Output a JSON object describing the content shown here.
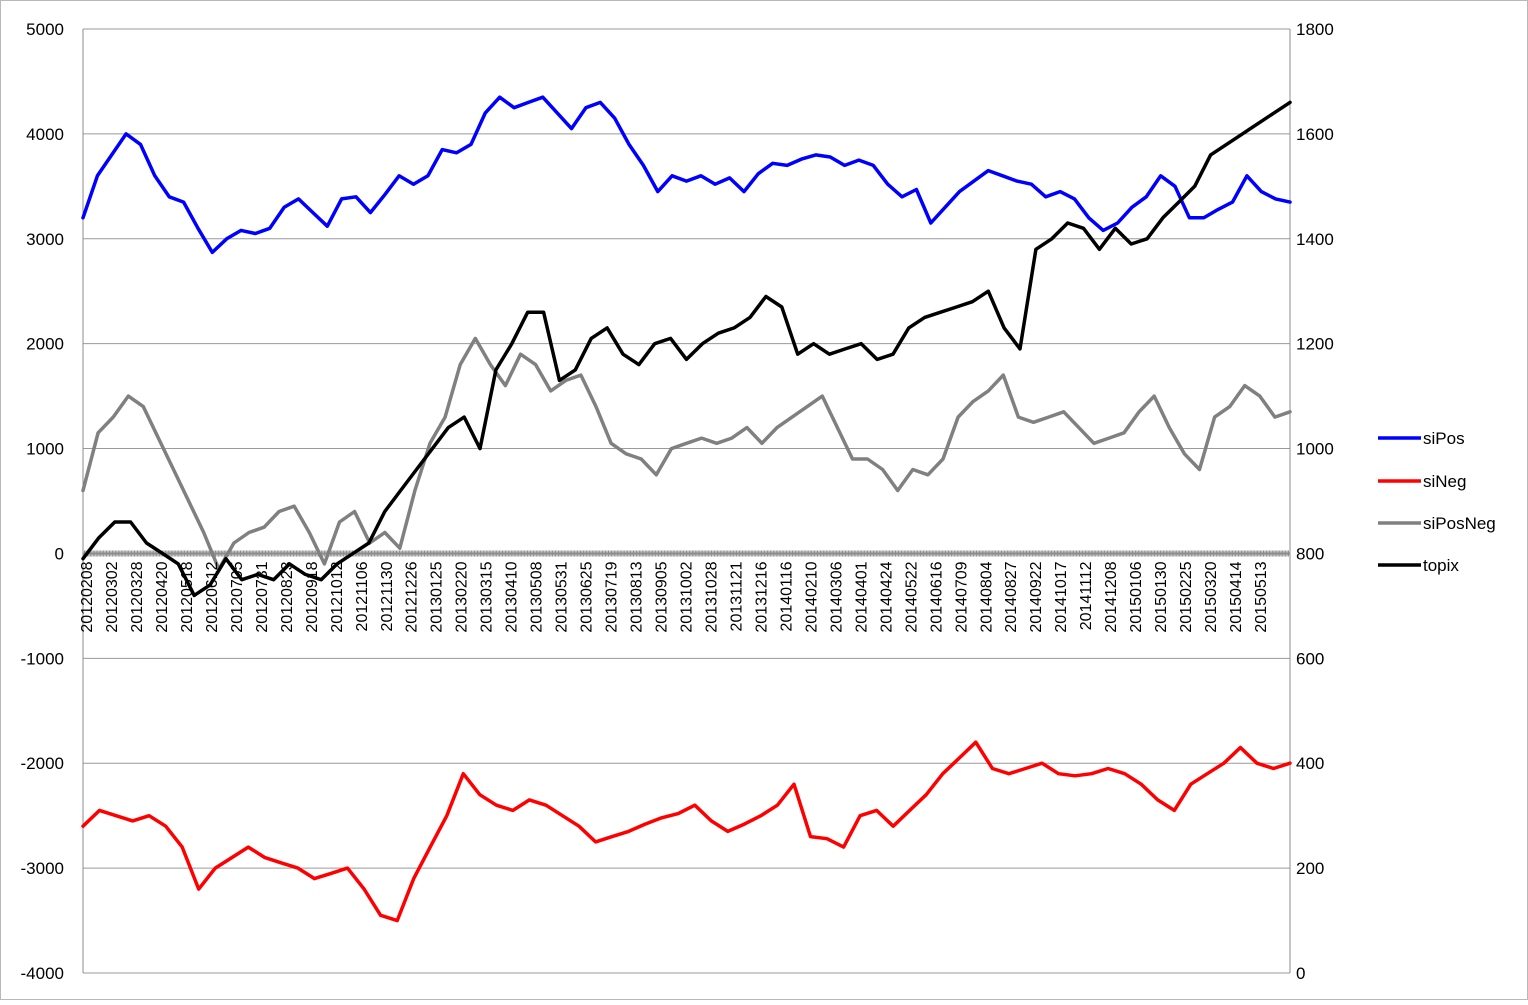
{
  "chart_data": {
    "type": "line",
    "title": "",
    "xlabel": "",
    "ylabel": "",
    "y_left": {
      "min": -4000,
      "max": 5000,
      "step": 1000,
      "ticks": [
        "5000",
        "4000",
        "3000",
        "2000",
        "1000",
        "0",
        "-1000",
        "-2000",
        "-3000",
        "-4000"
      ]
    },
    "y_right": {
      "min": 0,
      "max": 1800,
      "step": 200,
      "ticks": [
        "1800",
        "1600",
        "1400",
        "1200",
        "1000",
        "800",
        "600",
        "400",
        "200",
        "0"
      ]
    },
    "grid": "horizontal",
    "legend_position": "right",
    "x_tick_labels": [
      "20120208",
      "20120302",
      "20120328",
      "20120420",
      "20120518",
      "20120612",
      "20120705",
      "20120731",
      "20120823",
      "20120918",
      "20121012",
      "20121106",
      "20121130",
      "20121226",
      "20130125",
      "20130220",
      "20130315",
      "20130410",
      "20130508",
      "20130531",
      "20130625",
      "20130719",
      "20130813",
      "20130905",
      "20131002",
      "20131028",
      "20131121",
      "20131216",
      "20140116",
      "20140210",
      "20140306",
      "20140401",
      "20140424",
      "20140522",
      "20140616",
      "20140709",
      "20140804",
      "20140827",
      "20140922",
      "20141017",
      "20141112",
      "20141208",
      "20150106",
      "20150130",
      "20150225",
      "20150320",
      "20150414",
      "20150513"
    ],
    "x_tick_labels_visible": [
      "20120208",
      "20120302",
      "20120328",
      "20120420",
      "20120518",
      "20120612",
      "20120705",
      "20120731",
      "20120823",
      "20120918",
      "20121012",
      "20121106",
      "20121130",
      "20121226",
      "20130125",
      "20130220",
      "20130315",
      "20130410",
      "20130508",
      "20130531",
      "20130625",
      "20130719",
      "20130813",
      "20130905",
      "20131002",
      "20131028",
      "20131121",
      "20131216",
      "20140116",
      "20140210",
      "20140306",
      "20140401",
      "20140424",
      "20140522",
      "20140616",
      "20140709",
      "20140804",
      "20140827",
      "20140922",
      "20141017",
      "20141112",
      "20141208",
      "20150106",
      "20150130",
      "20150225",
      "20150320",
      "20150414",
      "20150513"
    ],
    "series": [
      {
        "name": "siPos",
        "axis": "left",
        "color": "#0000FF",
        "values": [
          3200,
          3600,
          3800,
          4000,
          3900,
          3600,
          3400,
          3350,
          3100,
          2870,
          3000,
          3080,
          3050,
          3100,
          3300,
          3380,
          3250,
          3120,
          3380,
          3400,
          3250,
          3420,
          3600,
          3520,
          3600,
          3850,
          3820,
          3900,
          4200,
          4350,
          4250,
          4300,
          4350,
          4200,
          4050,
          4250,
          4300,
          4150,
          3900,
          3700,
          3450,
          3600,
          3550,
          3600,
          3520,
          3580,
          3450,
          3620,
          3720,
          3700,
          3760,
          3800,
          3780,
          3700,
          3750,
          3700,
          3520,
          3400,
          3470,
          3150,
          3300,
          3450,
          3550,
          3650,
          3600,
          3550,
          3520,
          3400,
          3450,
          3380,
          3200,
          3080,
          3150,
          3300,
          3400,
          3600,
          3500,
          3200,
          3200,
          3280,
          3350,
          3600,
          3450,
          3380,
          3350
        ]
      },
      {
        "name": "siNeg",
        "axis": "left",
        "color": "#FF0000",
        "values": [
          -2600,
          -2450,
          -2500,
          -2550,
          -2500,
          -2600,
          -2800,
          -3200,
          -3000,
          -2900,
          -2800,
          -2900,
          -2950,
          -3000,
          -3100,
          -3050,
          -3000,
          -3200,
          -3450,
          -3500,
          -3100,
          -2800,
          -2500,
          -2100,
          -2300,
          -2400,
          -2450,
          -2350,
          -2400,
          -2500,
          -2600,
          -2750,
          -2700,
          -2650,
          -2580,
          -2520,
          -2480,
          -2400,
          -2550,
          -2650,
          -2580,
          -2500,
          -2400,
          -2200,
          -2700,
          -2720,
          -2800,
          -2500,
          -2450,
          -2600,
          -2450,
          -2300,
          -2100,
          -1950,
          -1800,
          -2050,
          -2100,
          -2050,
          -2000,
          -2100,
          -2120,
          -2100,
          -2050,
          -2100,
          -2200,
          -2350,
          -2450,
          -2200,
          -2100,
          -2000,
          -1850,
          -2000,
          -2050,
          -2000
        ]
      },
      {
        "name": "siPosNeg",
        "axis": "left",
        "color": "#808080",
        "values": [
          600,
          1150,
          1300,
          1500,
          1400,
          1100,
          800,
          500,
          200,
          -150,
          100,
          200,
          250,
          400,
          450,
          200,
          -100,
          300,
          400,
          100,
          200,
          50,
          600,
          1050,
          1300,
          1800,
          2050,
          1800,
          1600,
          1900,
          1800,
          1550,
          1650,
          1700,
          1400,
          1050,
          950,
          900,
          750,
          1000,
          1050,
          1100,
          1050,
          1100,
          1200,
          1050,
          1200,
          1300,
          1400,
          1500,
          1200,
          900,
          900,
          800,
          600,
          800,
          750,
          900,
          1300,
          1450,
          1550,
          1700,
          1300,
          1250,
          1300,
          1350,
          1200,
          1050,
          1100,
          1150,
          1350,
          1500,
          1200,
          950,
          800,
          1300,
          1400,
          1600,
          1500,
          1300,
          1350
        ]
      },
      {
        "name": "topix",
        "axis": "right",
        "color": "#000000",
        "values": [
          790,
          830,
          860,
          860,
          820,
          800,
          780,
          720,
          740,
          790,
          750,
          760,
          750,
          780,
          760,
          750,
          780,
          800,
          820,
          880,
          920,
          960,
          1000,
          1040,
          1060,
          1000,
          1150,
          1200,
          1260,
          1260,
          1130,
          1150,
          1210,
          1230,
          1180,
          1160,
          1200,
          1210,
          1170,
          1200,
          1220,
          1230,
          1250,
          1290,
          1270,
          1180,
          1200,
          1180,
          1190,
          1200,
          1170,
          1180,
          1230,
          1250,
          1260,
          1270,
          1280,
          1300,
          1230,
          1190,
          1380,
          1400,
          1430,
          1420,
          1380,
          1420,
          1390,
          1400,
          1440,
          1470,
          1500,
          1560,
          1580,
          1600,
          1620,
          1640,
          1660
        ]
      }
    ]
  }
}
